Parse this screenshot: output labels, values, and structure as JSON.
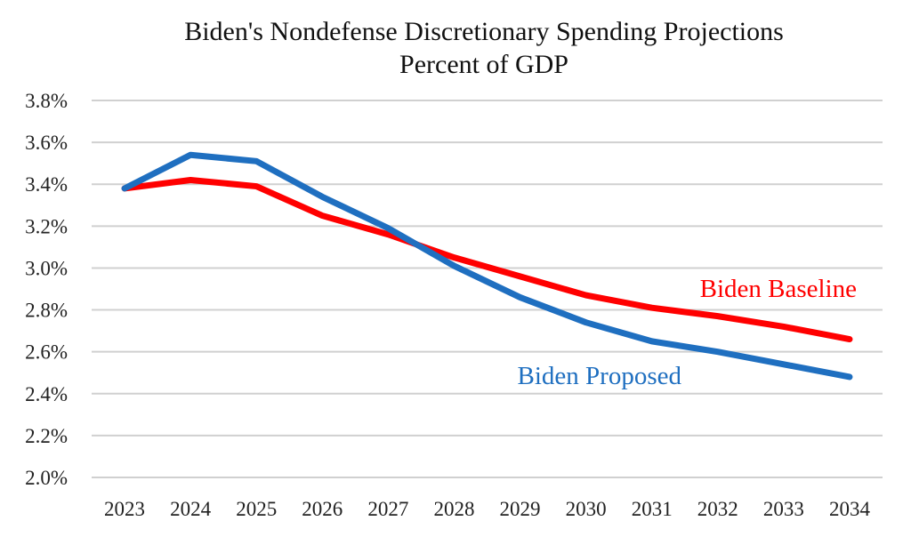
{
  "chart_data": {
    "type": "line",
    "title": "Biden's Nondefense Discretionary Spending Projections",
    "subtitle": "Percent of GDP",
    "xlabel": "",
    "ylabel": "",
    "categories": [
      "2023",
      "2024",
      "2025",
      "2026",
      "2027",
      "2028",
      "2029",
      "2030",
      "2031",
      "2032",
      "2033",
      "2034"
    ],
    "ylim": [
      2.0,
      3.8
    ],
    "yticks": [
      2.0,
      2.2,
      2.4,
      2.6,
      2.8,
      3.0,
      3.2,
      3.4,
      3.6,
      3.8
    ],
    "ytick_labels": [
      "2.0%",
      "2.2%",
      "2.4%",
      "2.6%",
      "2.8%",
      "3.0%",
      "3.2%",
      "3.4%",
      "3.6%",
      "3.8%"
    ],
    "grid": true,
    "legend": "inline labels",
    "series": [
      {
        "name": "Biden Baseline",
        "color": "#ff0000",
        "values": [
          3.38,
          3.42,
          3.39,
          3.25,
          3.16,
          3.05,
          2.96,
          2.87,
          2.81,
          2.77,
          2.72,
          2.66
        ]
      },
      {
        "name": "Biden Proposed",
        "color": "#1f6fc0",
        "values": [
          3.38,
          3.54,
          3.51,
          3.34,
          3.19,
          3.01,
          2.86,
          2.74,
          2.65,
          2.6,
          2.54,
          2.48
        ]
      }
    ]
  }
}
